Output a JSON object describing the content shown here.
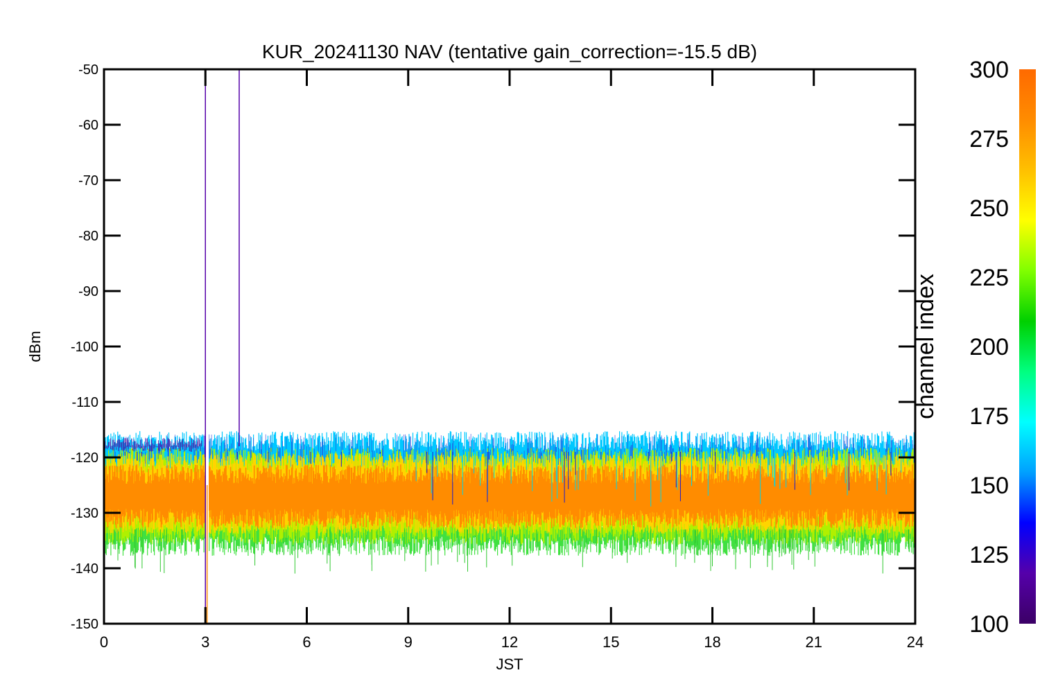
{
  "chart_data": {
    "type": "line",
    "title": "KUR_20241130 NAV (tentative gain_correction=-15.5 dB)",
    "xlabel": "JST",
    "ylabel": "dBm",
    "xlim": [
      0,
      24
    ],
    "ylim": [
      -150,
      -50
    ],
    "x_ticks": [
      "0",
      "3",
      "6",
      "9",
      "12",
      "15",
      "18",
      "21",
      "24"
    ],
    "y_ticks": [
      "-50",
      "-60",
      "-70",
      "-80",
      "-90",
      "-100",
      "-110",
      "-120",
      "-130",
      "-140",
      "-150"
    ],
    "grid": false,
    "series_description": {
      "center_dbm": -127,
      "band_low_dbm": -137,
      "band_high_dbm": -118,
      "gap_start_hour": 3.0,
      "gap_end_hour": 3.1,
      "spikes": [
        {
          "x": 3.0,
          "y_low": -150,
          "y_high": -50,
          "channel": 110
        },
        {
          "x": 4.0,
          "y_low": -118,
          "y_high": -50,
          "channel": 112
        },
        {
          "x": 3.05,
          "y_low": -150,
          "y_high": -125,
          "channel": 290
        }
      ]
    },
    "colorbar": {
      "label": "channel index",
      "range": [
        100,
        300
      ],
      "ticks": [
        "100",
        "125",
        "150",
        "175",
        "200",
        "225",
        "250",
        "275",
        "300"
      ],
      "colormap": [
        "#3b0066",
        "#5500aa",
        "#0000ff",
        "#00a0ff",
        "#00ffff",
        "#00ff80",
        "#00d000",
        "#80ff00",
        "#ffff00",
        "#ffc000",
        "#ff8c00",
        "#ff6a00"
      ]
    }
  }
}
